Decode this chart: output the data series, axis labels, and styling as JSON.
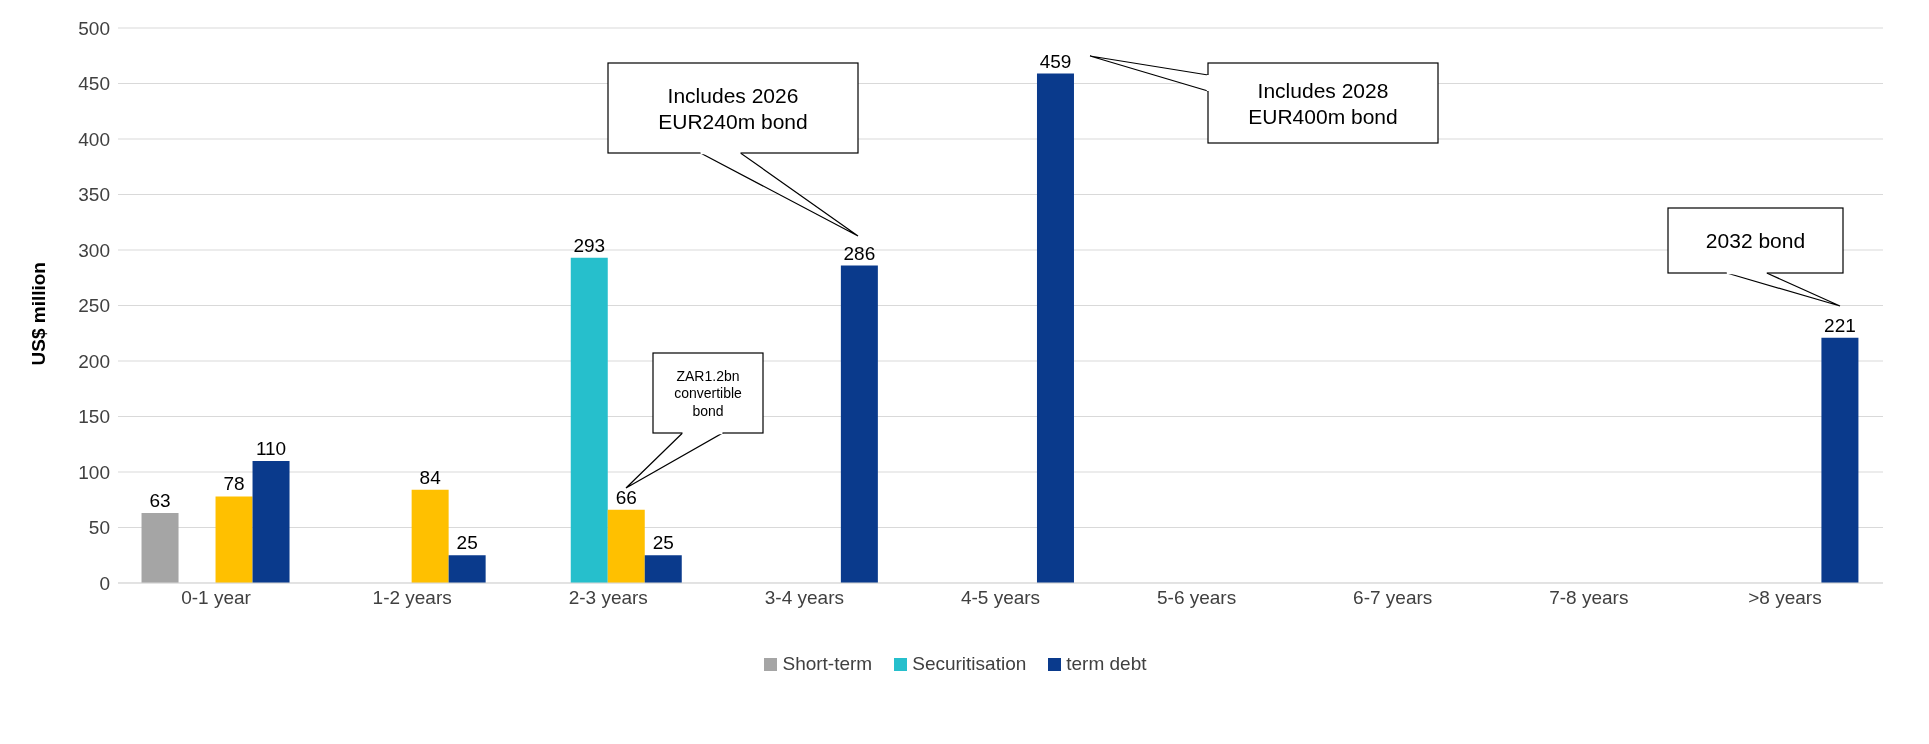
{
  "chart_data": {
    "type": "bar",
    "ylabel": "US$ million",
    "categories": [
      "0-1 year",
      "1-2 years",
      "2-3 years",
      "3-4 years",
      "4-5 years",
      "5-6 years",
      "6-7 years",
      "7-8 years",
      ">8 years"
    ],
    "series": [
      {
        "name": "Short-term",
        "color": "#a5a5a5",
        "values": [
          63,
          null,
          null,
          null,
          null,
          null,
          null,
          null,
          null
        ]
      },
      {
        "name": "Securitisation",
        "color": "#26bfcc",
        "values": [
          null,
          null,
          293,
          null,
          null,
          null,
          null,
          null,
          null
        ]
      },
      {
        "color": "#ffc000",
        "values": [
          78,
          84,
          66,
          null,
          null,
          null,
          null,
          null,
          null
        ]
      },
      {
        "name": "term debt",
        "color": "#0a3a8c",
        "values": [
          110,
          25,
          25,
          286,
          459,
          null,
          null,
          null,
          221
        ]
      }
    ],
    "ylim": [
      0,
      500
    ],
    "yticks": [
      0,
      50,
      100,
      150,
      200,
      250,
      300,
      350,
      400,
      450,
      500
    ],
    "grid": "y",
    "legend": "bottom",
    "data_labels": true,
    "annotations": [
      "ZAR1.2bn convertible bond",
      "Includes 2026 EUR240m bond",
      "Includes 2028 EUR400m bond",
      "2032 bond"
    ]
  }
}
